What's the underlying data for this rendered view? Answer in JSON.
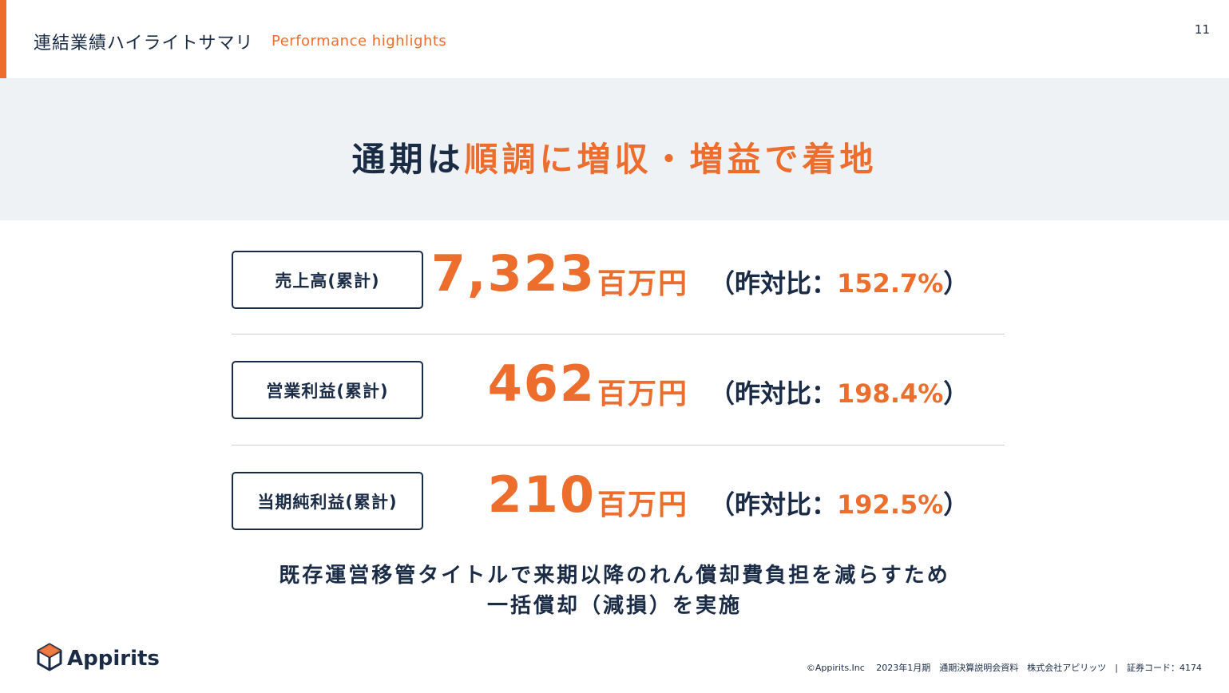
{
  "header": {
    "title": "連結業績ハイライトサマリ",
    "subtitle": "Performance highlights",
    "page_number": "11"
  },
  "headline": {
    "part1": "通期は",
    "part2": "順調に増収・増益で着地"
  },
  "metrics": [
    {
      "label": "売上高(累計)",
      "value": "7,323",
      "unit": "百万円",
      "yoy_prefix": "（昨対比：",
      "yoy_value": "152.7%",
      "yoy_suffix": "）"
    },
    {
      "label": "営業利益(累計)",
      "value": "462",
      "unit": "百万円",
      "yoy_prefix": "（昨対比：",
      "yoy_value": "198.4%",
      "yoy_suffix": "）"
    },
    {
      "label": "当期純利益(累計)",
      "value": "210",
      "unit": "百万円",
      "yoy_prefix": "（昨対比：",
      "yoy_value": "192.5%",
      "yoy_suffix": "）"
    }
  ],
  "note": {
    "line1": "既存運営移管タイトルで来期以降のれん償却費負担を減らすため",
    "line2": "一括償却（減損）を実施"
  },
  "logo": {
    "text": "Appirits",
    "icon": "cube-logo-icon"
  },
  "footer": {
    "text": "©Appirits.Inc　 2023年1月期　通期決算説明会資料　株式会社アピリッツ　|　証券コード：4174"
  },
  "colors": {
    "accent": "#ec6d2c",
    "navy": "#1a2b45",
    "banner": "#eff2f5"
  }
}
